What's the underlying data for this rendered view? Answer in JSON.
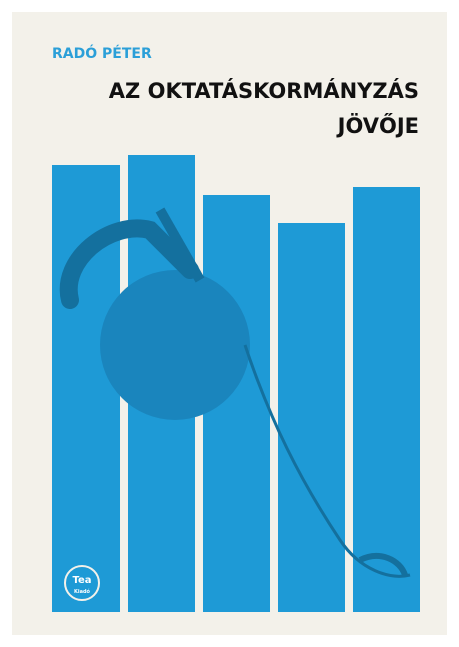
{
  "cover": {
    "author": "RADÓ PÉTER",
    "title_lines": [
      "AZ OKTATÁSKORMÁNYZÁS",
      "JÖVŐJE"
    ],
    "publisher": {
      "name": "Tea",
      "sub": "Kiadó"
    }
  }
}
